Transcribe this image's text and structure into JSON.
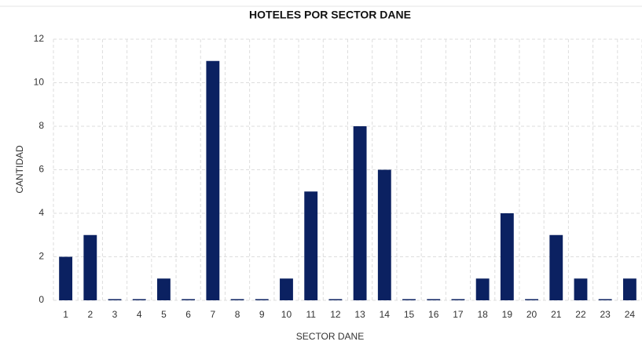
{
  "chart_data": {
    "type": "bar",
    "title": "HOTELES POR SECTOR DANE",
    "x_label": "SECTOR DANE",
    "y_label": "CANTIDAD",
    "categories": [
      "1",
      "2",
      "3",
      "4",
      "5",
      "6",
      "7",
      "8",
      "9",
      "10",
      "11",
      "12",
      "13",
      "14",
      "15",
      "16",
      "17",
      "18",
      "19",
      "20",
      "21",
      "22",
      "23",
      "24"
    ],
    "values": [
      2,
      3,
      0,
      0,
      1,
      0,
      11,
      0,
      0,
      1,
      5,
      0,
      8,
      6,
      0,
      0,
      0,
      1,
      4,
      0,
      3,
      1,
      0,
      1
    ],
    "color": "#0b2161",
    "ylim": [
      0,
      12
    ],
    "yticks": [
      0,
      2,
      4,
      6,
      8,
      10,
      12
    ],
    "grid": true
  }
}
